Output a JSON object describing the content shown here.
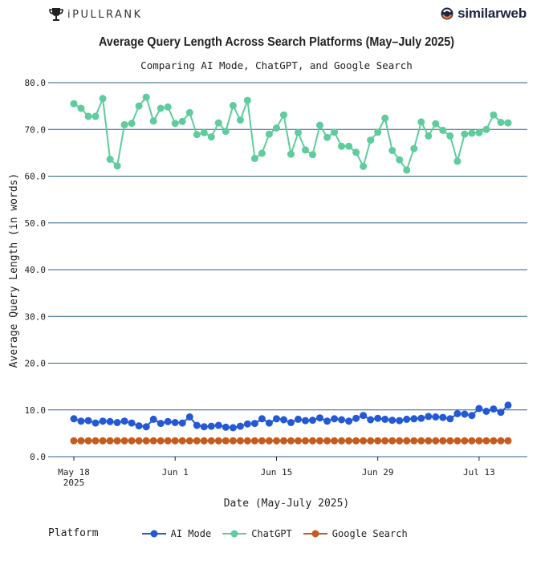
{
  "brand": {
    "left_name": "iPULLRANK",
    "right_name": "similarweb"
  },
  "chart_data": {
    "type": "line",
    "title": "Average Query Length Across Search Platforms (May–July 2025)",
    "subtitle": "Comparing AI Mode, ChatGPT, and Google Search",
    "xlabel": "Date (May-July 2025)",
    "ylabel": "Average Query Length (in words)",
    "ylim": [
      0,
      80
    ],
    "yticks": [
      "0.0",
      "10.0",
      "20.0",
      "30.0",
      "40.0",
      "50.0",
      "60.0",
      "70.0",
      "80.0"
    ],
    "xticks": [
      {
        "date": "2025-05-18",
        "label": [
          "May 18",
          "2025"
        ]
      },
      {
        "date": "2025-06-01",
        "label": [
          "Jun 1"
        ]
      },
      {
        "date": "2025-06-15",
        "label": [
          "Jun 15"
        ]
      },
      {
        "date": "2025-06-29",
        "label": [
          "Jun 29"
        ]
      },
      {
        "date": "2025-07-13",
        "label": [
          "Jul 13"
        ]
      }
    ],
    "x": [
      "2025-05-18",
      "2025-05-19",
      "2025-05-20",
      "2025-05-21",
      "2025-05-22",
      "2025-05-23",
      "2025-05-24",
      "2025-05-25",
      "2025-05-26",
      "2025-05-27",
      "2025-05-28",
      "2025-05-29",
      "2025-05-30",
      "2025-05-31",
      "2025-06-01",
      "2025-06-02",
      "2025-06-03",
      "2025-06-04",
      "2025-06-05",
      "2025-06-06",
      "2025-06-07",
      "2025-06-08",
      "2025-06-09",
      "2025-06-10",
      "2025-06-11",
      "2025-06-12",
      "2025-06-13",
      "2025-06-14",
      "2025-06-15",
      "2025-06-16",
      "2025-06-17",
      "2025-06-18",
      "2025-06-19",
      "2025-06-20",
      "2025-06-21",
      "2025-06-22",
      "2025-06-23",
      "2025-06-24",
      "2025-06-25",
      "2025-06-26",
      "2025-06-27",
      "2025-06-28",
      "2025-06-29",
      "2025-06-30",
      "2025-07-01",
      "2025-07-02",
      "2025-07-03",
      "2025-07-04",
      "2025-07-05",
      "2025-07-06",
      "2025-07-07",
      "2025-07-08",
      "2025-07-09",
      "2025-07-10",
      "2025-07-11",
      "2025-07-12",
      "2025-07-13",
      "2025-07-14",
      "2025-07-15",
      "2025-07-16",
      "2025-07-17",
      "2025-07-18",
      "2025-07-19"
    ],
    "series": [
      {
        "name": "AI Mode",
        "color": "#2459d6",
        "values": [
          8.1,
          7.6,
          7.7,
          7.2,
          7.6,
          7.5,
          7.3,
          7.6,
          7.2,
          6.6,
          6.4,
          8.0,
          7.1,
          7.5,
          7.3,
          7.2,
          8.5,
          6.7,
          6.4,
          6.5,
          6.7,
          6.3,
          6.2,
          6.5,
          7.0,
          7.1,
          8.1,
          7.2,
          8.1,
          7.9,
          7.3,
          8.0,
          7.7,
          7.8,
          8.3,
          7.6,
          8.1,
          7.9,
          7.6,
          8.2,
          8.8,
          7.9,
          8.2,
          8.0,
          7.8,
          7.7,
          8.0,
          8.1,
          8.2,
          8.6,
          8.5,
          8.4,
          8.1,
          9.2,
          9.1,
          8.8,
          10.3,
          9.7,
          10.2,
          9.5,
          11.0,
          null,
          null
        ]
      },
      {
        "name": "ChatGPT",
        "color": "#5ecc9c",
        "values": [
          75.5,
          74.5,
          72.8,
          72.8,
          76.6,
          63.6,
          62.2,
          71.0,
          71.3,
          75.0,
          76.9,
          71.8,
          74.5,
          74.8,
          71.3,
          71.7,
          73.6,
          68.9,
          69.3,
          68.4,
          71.4,
          69.6,
          75.1,
          72.0,
          76.2,
          63.8,
          64.9,
          69.0,
          70.3,
          73.1,
          64.7,
          69.3,
          65.6,
          64.6,
          70.9,
          68.3,
          69.4,
          66.4,
          66.4,
          65.1,
          62.1,
          67.7,
          69.4,
          72.4,
          65.5,
          63.5,
          61.3,
          65.9,
          71.6,
          68.6,
          71.2,
          69.8,
          68.6,
          63.2,
          69.0,
          69.2,
          69.3,
          70.0,
          73.1,
          71.5,
          71.4,
          null,
          null
        ]
      },
      {
        "name": "Google Search",
        "color": "#c65b1f",
        "values": [
          3.4,
          3.4,
          3.4,
          3.4,
          3.4,
          3.4,
          3.4,
          3.4,
          3.4,
          3.4,
          3.4,
          3.4,
          3.4,
          3.4,
          3.4,
          3.4,
          3.4,
          3.4,
          3.4,
          3.4,
          3.4,
          3.4,
          3.4,
          3.4,
          3.4,
          3.4,
          3.4,
          3.4,
          3.4,
          3.4,
          3.4,
          3.4,
          3.4,
          3.4,
          3.4,
          3.4,
          3.4,
          3.4,
          3.4,
          3.4,
          3.4,
          3.4,
          3.4,
          3.4,
          3.4,
          3.4,
          3.4,
          3.4,
          3.4,
          3.4,
          3.4,
          3.4,
          3.4,
          3.4,
          3.4,
          3.4,
          3.4,
          3.4,
          3.4,
          3.4,
          3.4,
          null,
          null
        ]
      }
    ],
    "grid": "horizontal",
    "legend": {
      "title": "Platform",
      "placement": "bottom"
    }
  }
}
